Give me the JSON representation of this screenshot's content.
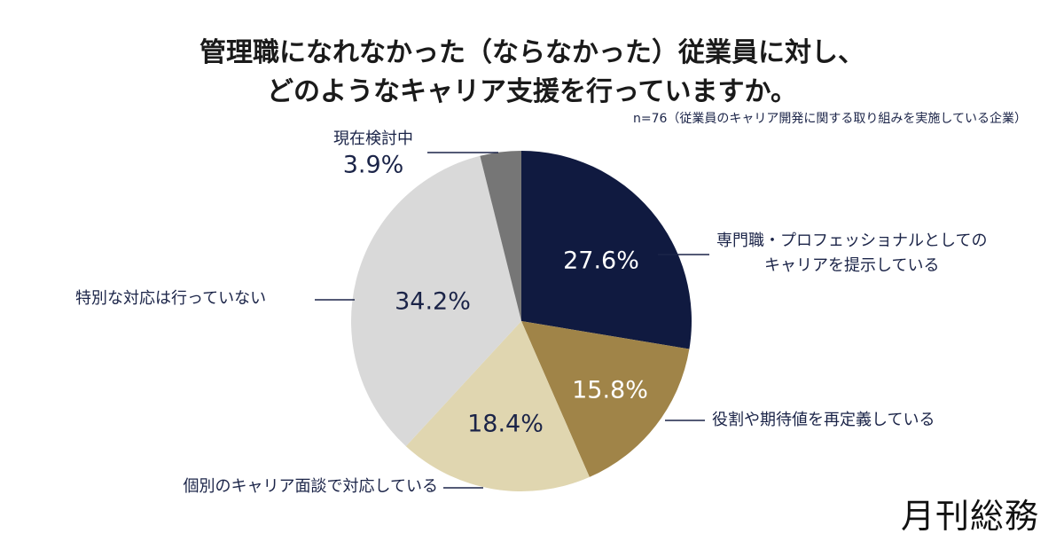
{
  "chart_data": {
    "type": "pie",
    "title": [
      "管理職になれなかった（ならなかった）従業員に対し、",
      "どのようなキャリア支援を行っていますか。"
    ],
    "note": "n=76（従業員のキャリア開発に関する取り組みを実施している企業）",
    "start": "top",
    "direction": "clockwise",
    "slices": [
      {
        "label": [
          "専門職・プロフェッショナルとしての",
          "キャリアを提示している"
        ],
        "value": 27.6,
        "display": "27.6%",
        "color": "#101a40",
        "text_color": "#ffffff"
      },
      {
        "label": [
          "役割や期待値を再定義している"
        ],
        "value": 15.8,
        "display": "15.8%",
        "color": "#a08448",
        "text_color": "#ffffff"
      },
      {
        "label": [
          "個別のキャリア面談で対応している"
        ],
        "value": 18.4,
        "display": "18.4%",
        "color": "#e0d6b0",
        "text_color": "#1b2448"
      },
      {
        "label": [
          "特別な対応は行っていない"
        ],
        "value": 34.2,
        "display": "34.2%",
        "color": "#d9d9d9",
        "text_color": "#1b2448"
      },
      {
        "label": [
          "現在検討中"
        ],
        "value": 3.9,
        "display": "3.9%",
        "color": "#767676",
        "text_color": "#1b2448"
      }
    ]
  },
  "logo": "月刊総務"
}
